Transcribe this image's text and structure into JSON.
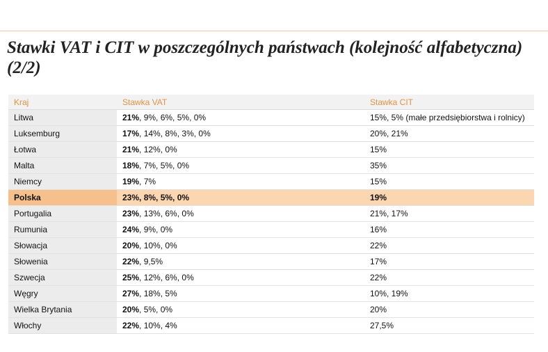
{
  "header": {
    "title": "Stawki VAT i CIT w poszczególnych państwach (kolejność alfabetyczna) (2/2)"
  },
  "table": {
    "columns": [
      "Kraj",
      "Stawka VAT",
      "Stawka CIT"
    ],
    "rows": [
      {
        "country": "Litwa",
        "vat_main": "21%",
        "vat_rest": ", 9%, 6%, 5%, 0%",
        "cit": "15%, 5% (małe przedsiębiorstwa i rolnicy)"
      },
      {
        "country": "Luksemburg",
        "vat_main": "17%",
        "vat_rest": ", 14%, 8%, 3%, 0%",
        "cit": "20%, 21%"
      },
      {
        "country": "Łotwa",
        "vat_main": "21%",
        "vat_rest": ", 12%, 0%",
        "cit": "15%"
      },
      {
        "country": "Malta",
        "vat_main": "18%",
        "vat_rest": ", 7%, 5%, 0%",
        "cit": "35%"
      },
      {
        "country": "Niemcy",
        "vat_main": "19%",
        "vat_rest": ", 7%",
        "cit": "15%"
      },
      {
        "country": "Polska",
        "vat_main": "23%",
        "vat_rest": ", 8%, 5%, 0%",
        "cit": "19%"
      },
      {
        "country": "Portugalia",
        "vat_main": "23%",
        "vat_rest": ", 13%, 6%, 0%",
        "cit": "21%, 17%"
      },
      {
        "country": "Rumunia",
        "vat_main": "24%",
        "vat_rest": ", 9%, 0%",
        "cit": "16%"
      },
      {
        "country": "Słowacja",
        "vat_main": "20%",
        "vat_rest": ", 10%, 0%",
        "cit": "22%"
      },
      {
        "country": "Słowenia",
        "vat_main": "22%",
        "vat_rest": ", 9,5%",
        "cit": "17%"
      },
      {
        "country": "Szwecja",
        "vat_main": "25%",
        "vat_rest": ", 12%, 6%, 0%",
        "cit": "22%"
      },
      {
        "country": "Węgry",
        "vat_main": "27%",
        "vat_rest": ", 18%, 5%",
        "cit": "10%, 19%"
      },
      {
        "country": "Wielka Brytania",
        "vat_main": "20%",
        "vat_rest": ", 5%, 0%",
        "cit": "20%"
      },
      {
        "country": "Włochy",
        "vat_main": "22%",
        "vat_rest": ", 10%, 4%",
        "cit": "27,5%"
      }
    ]
  }
}
